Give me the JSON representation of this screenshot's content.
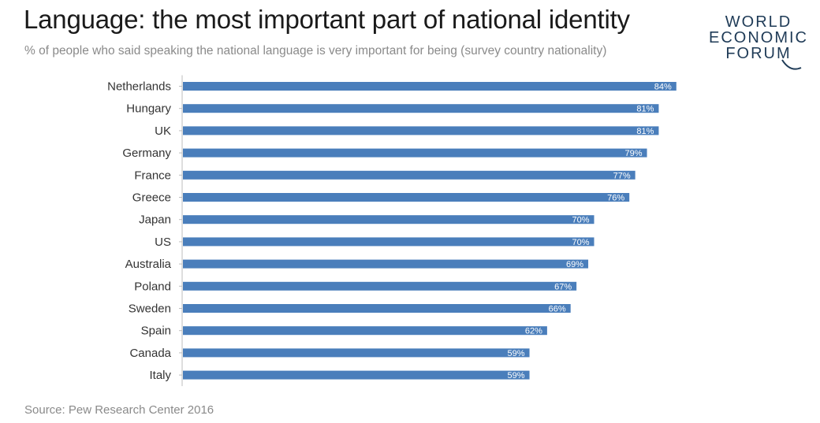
{
  "header": {
    "title": "Language: the most important part of national identity",
    "subtitle": "% of people who said speaking the national language is very important for being (survey country nationality)"
  },
  "logo": {
    "line1": "WORLD",
    "line2": "ECONOMIC",
    "line3": "FORUM",
    "color": "#1f3b57"
  },
  "footer": {
    "source": "Source: Pew Research Center 2016"
  },
  "chart_data": {
    "type": "bar",
    "orientation": "horizontal",
    "title": "Language: the most important part of national identity",
    "subtitle": "% of people who said speaking the national language is very important for being (survey country nationality)",
    "categories": [
      "Netherlands",
      "Hungary",
      "UK",
      "Germany",
      "France",
      "Greece",
      "Japan",
      "US",
      "Australia",
      "Poland",
      "Sweden",
      "Spain",
      "Canada",
      "Italy"
    ],
    "values": [
      84,
      81,
      81,
      79,
      77,
      76,
      70,
      70,
      69,
      67,
      66,
      62,
      59,
      59
    ],
    "labels": [
      "84%",
      "81%",
      "81%",
      "79%",
      "77%",
      "76%",
      "70%",
      "70%",
      "69%",
      "67%",
      "66%",
      "62%",
      "59%",
      "59%"
    ],
    "xlim": [
      0,
      100
    ],
    "bar_color": "#4a7ebb",
    "grid": false,
    "legend": "none",
    "xlabel": "",
    "ylabel": ""
  }
}
